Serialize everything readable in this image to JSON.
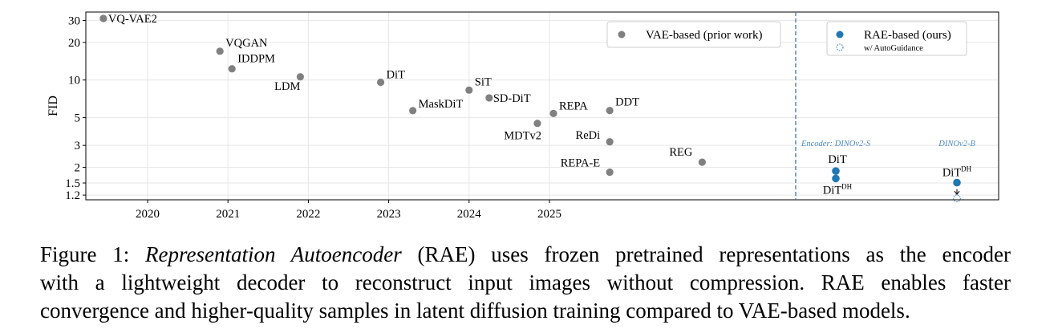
{
  "chart_data": {
    "type": "scatter",
    "ylabel": "FID",
    "y_scale": "log",
    "ylim": [
      1.1,
      35
    ],
    "y_ticks": [
      1.2,
      1.5,
      2,
      3,
      5,
      10,
      20,
      30
    ],
    "y_tick_labels": [
      "1.2",
      "1.5",
      "2",
      "3",
      "5",
      "10",
      "20",
      "30"
    ],
    "x_ticks": [
      2020,
      2021,
      2022,
      2023,
      2024,
      2025
    ],
    "x_tick_labels": [
      "2020",
      "2021",
      "2022",
      "2023",
      "2024",
      "2025"
    ],
    "grid": true,
    "series": [
      {
        "name": "VAE-based (prior work)",
        "color": "#808080",
        "points": [
          {
            "label": "VQ-VAE2",
            "x": 2019.45,
            "y": 31.1
          },
          {
            "label": "VQGAN",
            "x": 2020.9,
            "y": 17.0
          },
          {
            "label": "IDDPM",
            "x": 2021.05,
            "y": 12.3
          },
          {
            "label": "LDM",
            "x": 2021.9,
            "y": 10.6
          },
          {
            "label": "DiT",
            "x": 2022.9,
            "y": 9.6
          },
          {
            "label": "MaskDiT",
            "x": 2023.3,
            "y": 5.69
          },
          {
            "label": "SiT",
            "x": 2024.0,
            "y": 8.3
          },
          {
            "label": "SD-DiT",
            "x": 2024.25,
            "y": 7.2
          },
          {
            "label": "MDTv2",
            "x": 2024.85,
            "y": 4.5
          },
          {
            "label": "REPA",
            "x": 2025.05,
            "y": 5.4
          },
          {
            "label": "DDT",
            "x": 2025.75,
            "y": 5.7
          },
          {
            "label": "ReDi",
            "x": 2025.75,
            "y": 3.2
          },
          {
            "label": "REPA-E",
            "x": 2025.75,
            "y": 1.83
          },
          {
            "label": "REG",
            "x": 2026.9,
            "y": 2.2
          }
        ]
      },
      {
        "name": "RAE-based (ours)",
        "color": "#1f77b4",
        "points": [
          {
            "label": "DiT",
            "encoder": "Encoder: DINOv2-S",
            "y": 1.87
          },
          {
            "label": "DiT",
            "label_sup": "DH",
            "encoder": "Encoder: DINOv2-S",
            "y": 1.63
          },
          {
            "label": "DiT",
            "label_sup": "DH",
            "encoder": "DINOv2-B",
            "y": 1.51
          }
        ]
      },
      {
        "name": "w/ AutoGuidance",
        "color": "#1f77b4",
        "style": "dotted-hollow",
        "points": [
          {
            "encoder": "DINOv2-B",
            "y": 1.13
          }
        ]
      }
    ],
    "encoder_annotations": [
      "Encoder: DINOv2-S",
      "DINOv2-B"
    ],
    "legends": [
      {
        "position": "top-center",
        "entries": [
          "VAE-based (prior work)"
        ]
      },
      {
        "position": "top-right",
        "entries": [
          "RAE-based (ours)",
          "w/ AutoGuidance"
        ]
      }
    ]
  },
  "caption": {
    "prefix": "Figure 1: ",
    "title_italic": "Representation Autoencoder",
    "line1_rest": " (RAE) uses frozen pretrained representations as the encoder",
    "line2": "with a lightweight decoder to reconstruct input images without compression.  RAE enables faster",
    "line3": "convergence and higher-quality samples in latent diffusion training compared to VAE-based models."
  }
}
